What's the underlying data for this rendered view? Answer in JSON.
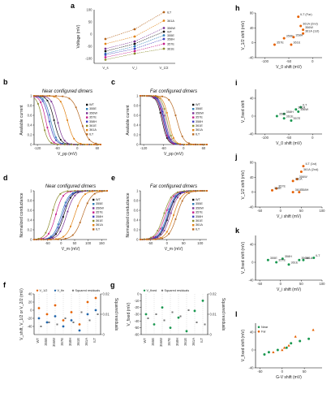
{
  "colors": {
    "WT": "#111111",
    "355E": "#2c7fb8",
    "356W": "#7b3294",
    "357E": "#c51b8a",
    "358H": "#3f3fbf",
    "361E": "#8a8a2a",
    "361A": "#e08214",
    "ILT": "#b5651d",
    "vhalf": "#e66101",
    "vs": "#1a9850",
    "vfin": "#2166ac",
    "resid": "#777777"
  },
  "mutants": [
    "WT",
    "355E",
    "356W",
    "357E",
    "358H",
    "361E",
    "361A",
    "ILT"
  ],
  "panels": {
    "a": {
      "letter": "a",
      "ylabel": "Voltage (mV)",
      "xticks": [
        "V_s",
        "V_i",
        "V_1/2"
      ],
      "yticks": [
        "-100",
        "-50",
        "0",
        "50",
        "100"
      ]
    },
    "b": {
      "letter": "b",
      "title": "Near configured dimers",
      "ylabel": "Available current",
      "xlabel": "V_pp (mV)"
    },
    "c": {
      "letter": "c",
      "title": "Far configured dimers",
      "ylabel": "Available current",
      "xlabel": "V_pp (mV)"
    },
    "d": {
      "letter": "d",
      "title": "Near configured dimers",
      "ylabel": "Normalized conductance",
      "xlabel": "V_m (mV)"
    },
    "e": {
      "letter": "e",
      "title": "Far configured dimers",
      "ylabel": "Normalized conductance",
      "xlabel": "V_m (mV)"
    },
    "f": {
      "letter": "f",
      "ylabel": "V_shift, V_1/2 or V_2/2 (mV)",
      "y2label": "Squared residuals",
      "legend": [
        "V_1/2",
        "V_fin",
        "Squared residuals"
      ]
    },
    "g": {
      "letter": "g",
      "ylabel": "V_fixed (mV)",
      "y2label": "Squared residuals",
      "legend": [
        "V_fixed",
        "Squared residuals"
      ]
    },
    "h": {
      "letter": "h",
      "ylabel": "V_1/2 shift (mV)",
      "xlabel": "V_0 shift (mV)"
    },
    "i": {
      "letter": "i",
      "ylabel": "V_fixed shift",
      "xlabel": "V_0 shift (mV)"
    },
    "j": {
      "letter": "j",
      "ylabel": "V_1/2 shift (mV)",
      "xlabel": "V_i shift (mV)"
    },
    "k": {
      "letter": "k",
      "ylabel": "V_fixed shift (mV)",
      "xlabel": "V_i shift (mV)"
    },
    "l": {
      "letter": "l",
      "ylabel": "V_fixed shift (mV)",
      "xlabel": "G-V shift (mV)",
      "legend": [
        "Near",
        "Far"
      ]
    }
  },
  "chart_data": [
    {
      "id": "a",
      "type": "line",
      "ylabel": "Voltage (mV)",
      "ylim": [
        -120,
        100
      ],
      "categories": [
        "V_s",
        "V_i",
        "V_1/2"
      ],
      "series": [
        {
          "name": "ILT",
          "values": [
            -20,
            20,
            90
          ]
        },
        {
          "name": "361A",
          "values": [
            -40,
            -10,
            55
          ]
        },
        {
          "name": "356W",
          "values": [
            -60,
            -30,
            25
          ]
        },
        {
          "name": "WT",
          "values": [
            -70,
            -40,
            10
          ]
        },
        {
          "name": "355E",
          "values": [
            -80,
            -50,
            -5
          ]
        },
        {
          "name": "358H",
          "values": [
            -85,
            -60,
            -20
          ]
        },
        {
          "name": "357E",
          "values": [
            -95,
            -70,
            -40
          ]
        },
        {
          "name": "361E",
          "values": [
            -105,
            -80,
            -60
          ]
        }
      ]
    },
    {
      "id": "b",
      "type": "line",
      "title": "Near configured dimers",
      "ylabel": "Available current",
      "xlabel": "V_pp (mV)",
      "xlim": [
        -130,
        70
      ],
      "ylim": [
        0,
        1.0
      ],
      "xticks": [
        -120,
        -60,
        0,
        60
      ],
      "yticks": [
        0,
        0.2,
        0.4,
        0.6,
        0.8,
        1.0
      ],
      "series": [
        {
          "name": "WT",
          "vh": -70,
          "k": 9
        },
        {
          "name": "355E",
          "vh": -80,
          "k": 9
        },
        {
          "name": "356W",
          "vh": -60,
          "k": 9
        },
        {
          "name": "357E",
          "vh": -95,
          "k": 8
        },
        {
          "name": "358H",
          "vh": -85,
          "k": 9
        },
        {
          "name": "361E",
          "vh": -105,
          "k": 8
        },
        {
          "name": "361A",
          "vh": -30,
          "k": 10
        },
        {
          "name": "ILT",
          "vh": 10,
          "k": 12
        }
      ]
    },
    {
      "id": "c",
      "type": "line",
      "title": "Far configured dimers",
      "ylabel": "Available current",
      "xlabel": "V_pp (mV)",
      "xlim": [
        -130,
        70
      ],
      "ylim": [
        0,
        1.0
      ],
      "xticks": [
        -120,
        -60,
        0,
        60
      ],
      "yticks": [
        0,
        0.2,
        0.4,
        0.6,
        0.8,
        1.0
      ],
      "series": [
        {
          "name": "WT",
          "vh": -65,
          "k": 8
        },
        {
          "name": "356E",
          "vh": -60,
          "k": 8
        },
        {
          "name": "356W",
          "vh": -55,
          "k": 8
        },
        {
          "name": "357E",
          "vh": -62,
          "k": 8
        },
        {
          "name": "358H",
          "vh": -58,
          "k": 8
        },
        {
          "name": "361E",
          "vh": -50,
          "k": 8
        },
        {
          "name": "361A",
          "vh": -45,
          "k": 8
        },
        {
          "name": "ILT",
          "vh": -20,
          "k": 10
        }
      ]
    },
    {
      "id": "d",
      "type": "line",
      "title": "Near configured dimers",
      "ylabel": "Normalized conductance",
      "xlabel": "V_m (mV)",
      "xlim": [
        -100,
        170
      ],
      "ylim": [
        0,
        1.0
      ],
      "xticks": [
        -50,
        0,
        50,
        100,
        150
      ],
      "yticks": [
        0,
        0.2,
        0.4,
        0.6,
        0.8,
        1.0
      ],
      "series": [
        {
          "name": "WT",
          "vh": 10,
          "k": 14
        },
        {
          "name": "355E",
          "vh": 0,
          "k": 14
        },
        {
          "name": "356W",
          "vh": 20,
          "k": 14
        },
        {
          "name": "357E",
          "vh": -20,
          "k": 13
        },
        {
          "name": "358H",
          "vh": 5,
          "k": 14
        },
        {
          "name": "361E",
          "vh": -35,
          "k": 12
        },
        {
          "name": "361A",
          "vh": 50,
          "k": 15
        },
        {
          "name": "ILT",
          "vh": 80,
          "k": 16
        }
      ]
    },
    {
      "id": "e",
      "type": "line",
      "title": "Far configured dimers",
      "ylabel": "Normalized conductance",
      "xlabel": "V_m (mV)",
      "xlim": [
        -80,
        120
      ],
      "ylim": [
        0,
        1.0
      ],
      "xticks": [
        -50,
        0,
        50,
        100
      ],
      "yticks": [
        0,
        0.2,
        0.4,
        0.6,
        0.8,
        1.0
      ],
      "series": [
        {
          "name": "WT",
          "vh": 5,
          "k": 12
        },
        {
          "name": "355E",
          "vh": 0,
          "k": 12
        },
        {
          "name": "356W",
          "vh": 10,
          "k": 12
        },
        {
          "name": "357E",
          "vh": -5,
          "k": 12
        },
        {
          "name": "358H",
          "vh": 3,
          "k": 12
        },
        {
          "name": "361E",
          "vh": -10,
          "k": 12
        },
        {
          "name": "361A",
          "vh": 20,
          "k": 12
        },
        {
          "name": "ILT",
          "vh": 30,
          "k": 12
        }
      ]
    },
    {
      "id": "f",
      "type": "scatter",
      "ylabel": "V_shift, V_1/2 or V_2/2 (mV)",
      "y2label": "Squared residuals",
      "categories": [
        "WT",
        "355E",
        "356W",
        "357E",
        "358H",
        "361E",
        "361A",
        "ILT"
      ],
      "ylim": [
        -60,
        40
      ],
      "y2lim": [
        0,
        0.02
      ],
      "yticks": [
        -40,
        -20,
        0,
        20,
        40
      ],
      "y2ticks": [
        0,
        0.01,
        0.02
      ],
      "series": [
        {
          "name": "V_1/2",
          "values": [
            5,
            -10,
            12,
            -25,
            -5,
            -35,
            20,
            30
          ]
        },
        {
          "name": "V_fin",
          "values": [
            -20,
            -30,
            -15,
            -40,
            -25,
            -50,
            -10,
            0
          ]
        },
        {
          "name": "Squared residuals",
          "values": [
            0.004,
            0.006,
            0.005,
            0.008,
            0.006,
            0.011,
            0.007,
            0.01
          ]
        }
      ]
    },
    {
      "id": "g",
      "type": "scatter",
      "ylabel": "V_fixed (mV)",
      "y2label": "Squared residuals",
      "categories": [
        "WT",
        "355E",
        "356W",
        "357E",
        "358H",
        "361E",
        "361A",
        "ILT"
      ],
      "ylim": [
        -60,
        0
      ],
      "y2lim": [
        0,
        0.02
      ],
      "yticks": [
        -60,
        -50,
        -40,
        -30,
        -20,
        -10,
        0
      ],
      "y2ticks": [
        0,
        0.01,
        0.02
      ],
      "series": [
        {
          "name": "V_fixed",
          "values": [
            -30,
            -45,
            -20,
            -50,
            -35,
            -55,
            -25,
            -10
          ]
        },
        {
          "name": "Squared residuals",
          "values": [
            0.008,
            0.01,
            0.007,
            0.011,
            0.009,
            0.012,
            0.006,
            0.005
          ]
        }
      ]
    },
    {
      "id": "h",
      "type": "scatter",
      "ylabel": "V_1/2 shift (mV)",
      "xlabel": "V_0 shift (mV)",
      "xlim": [
        -120,
        20
      ],
      "ylim": [
        -40,
        80
      ],
      "xticks": [
        -100,
        -50,
        0
      ],
      "yticks": [
        -40,
        0,
        40,
        80
      ],
      "points": [
        {
          "label": "ILT (Far)",
          "x": -30,
          "y": 70
        },
        {
          "label": "361A (2nd)",
          "x": -25,
          "y": 45
        },
        {
          "label": "356W",
          "x": -20,
          "y": 35
        },
        {
          "label": "361A (1st)",
          "x": -20,
          "y": 25
        },
        {
          "label": "358H",
          "x": -40,
          "y": 15
        },
        {
          "label": "356E",
          "x": -60,
          "y": 12
        },
        {
          "label": "361E",
          "x": -45,
          "y": -5
        },
        {
          "label": "357E",
          "x": -80,
          "y": -5
        }
      ]
    },
    {
      "id": "i",
      "type": "scatter",
      "ylabel": "V_fixed shift",
      "xlabel": "V_0 shift (mV)",
      "xlim": [
        -120,
        20
      ],
      "ylim": [
        -40,
        60
      ],
      "xticks": [
        -100,
        -50,
        0
      ],
      "yticks": [
        -40,
        -20,
        0,
        20,
        40,
        60
      ],
      "points": [
        {
          "label": "ILT",
          "x": -25,
          "y": 20
        },
        {
          "label": "361A",
          "x": -35,
          "y": 15
        },
        {
          "label": "356W",
          "x": -30,
          "y": 10
        },
        {
          "label": "358H",
          "x": -60,
          "y": 5
        },
        {
          "label": "356E",
          "x": -75,
          "y": 0
        },
        {
          "label": "361E",
          "x": -60,
          "y": -5
        },
        {
          "label": "357E",
          "x": -45,
          "y": -10
        }
      ]
    },
    {
      "id": "j",
      "type": "scatter",
      "ylabel": "V_1/2 shift (mV)",
      "xlabel": "V_i shift (mV)",
      "xlim": [
        -60,
        100
      ],
      "ylim": [
        -40,
        80
      ],
      "xticks": [
        -50,
        0,
        50,
        100
      ],
      "yticks": [
        -40,
        0,
        40,
        80
      ],
      "points": [
        {
          "label": "ILT (1st)",
          "x": 55,
          "y": 70
        },
        {
          "label": "361A (2nd)",
          "x": 50,
          "y": 55
        },
        {
          "label": "356W",
          "x": 40,
          "y": 35
        },
        {
          "label": "361A",
          "x": 30,
          "y": 30
        },
        {
          "label": "357E",
          "x": -10,
          "y": 10
        },
        {
          "label": "356E",
          "x": -20,
          "y": 5
        },
        {
          "label": "361E",
          "x": 30,
          "y": 0
        },
        {
          "label": "358H",
          "x": 45,
          "y": 0
        }
      ]
    },
    {
      "id": "k",
      "type": "scatter",
      "ylabel": "V_fixed shift (mV)",
      "xlabel": "V_i shift (mV)",
      "xlim": [
        -60,
        100
      ],
      "ylim": [
        -40,
        60
      ],
      "xticks": [
        -50,
        0,
        50,
        100
      ],
      "yticks": [
        -40,
        -20,
        0,
        20,
        40,
        60
      ],
      "points": [
        {
          "label": "ILT",
          "x": 80,
          "y": 10
        },
        {
          "label": "361A",
          "x": 55,
          "y": 5
        },
        {
          "label": "356W",
          "x": 45,
          "y": 5
        },
        {
          "label": "358H",
          "x": 5,
          "y": 8
        },
        {
          "label": "355E",
          "x": -30,
          "y": 5
        },
        {
          "label": "357E",
          "x": -10,
          "y": 0
        },
        {
          "label": "361E",
          "x": 20,
          "y": -5
        }
      ]
    },
    {
      "id": "l",
      "type": "scatter",
      "ylabel": "V_fixed shift (mV)",
      "xlabel": "G-V shift (mV)",
      "xlim": [
        -60,
        90
      ],
      "ylim": [
        -40,
        60
      ],
      "xticks": [
        -50,
        0,
        50
      ],
      "yticks": [
        -40,
        -20,
        0,
        20,
        40,
        60
      ],
      "series": [
        {
          "name": "Near",
          "points": [
            [
              -40,
              -10
            ],
            [
              -30,
              -5
            ],
            [
              -10,
              0
            ],
            [
              10,
              5
            ],
            [
              20,
              15
            ],
            [
              40,
              20
            ],
            [
              60,
              25
            ]
          ]
        },
        {
          "name": "Far",
          "points": [
            [
              -20,
              -5
            ],
            [
              0,
              0
            ],
            [
              5,
              5
            ],
            [
              15,
              10
            ],
            [
              30,
              30
            ],
            [
              70,
              45
            ]
          ]
        }
      ]
    }
  ]
}
